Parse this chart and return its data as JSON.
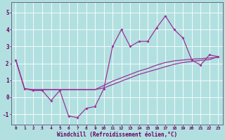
{
  "background_color": "#b2e0e0",
  "line_color": "#993399",
  "grid_color": "#ffffff",
  "xlabel": "Windchill (Refroidissement éolien,°C)",
  "xlabel_color": "#660066",
  "tick_color": "#660066",
  "xlim": [
    -0.5,
    23.5
  ],
  "ylim": [
    -1.6,
    5.6
  ],
  "yticks": [
    -1,
    0,
    1,
    2,
    3,
    4,
    5
  ],
  "xtick_labels": [
    "0",
    "1",
    "2",
    "3",
    "4",
    "5",
    "6",
    "7",
    "8",
    "9",
    "10",
    "11",
    "12",
    "13",
    "14",
    "15",
    "16",
    "17",
    "18",
    "19",
    "20",
    "21",
    "22",
    "23"
  ],
  "xtick_vals": [
    0,
    1,
    2,
    3,
    4,
    5,
    6,
    7,
    8,
    9,
    10,
    11,
    12,
    13,
    14,
    15,
    16,
    17,
    18,
    19,
    20,
    21,
    22,
    23
  ],
  "main_x": [
    0,
    1,
    2,
    3,
    4,
    5,
    6,
    7,
    8,
    9,
    10,
    11,
    12,
    13,
    14,
    15,
    16,
    17,
    18,
    19,
    20,
    21,
    22,
    23
  ],
  "main_y": [
    2.2,
    0.5,
    0.4,
    0.4,
    -0.2,
    0.4,
    -1.1,
    -1.2,
    -0.65,
    -0.55,
    0.5,
    3.0,
    4.0,
    3.0,
    3.3,
    3.3,
    4.1,
    4.8,
    4.0,
    3.5,
    2.2,
    1.9,
    2.5,
    2.4
  ],
  "line2_x": [
    0,
    1,
    2,
    3,
    4,
    5,
    6,
    7,
    8,
    9,
    10,
    11,
    12,
    13,
    14,
    15,
    16,
    17,
    18,
    19,
    20,
    21,
    22,
    23
  ],
  "line2_y": [
    2.2,
    0.5,
    0.45,
    0.45,
    0.45,
    0.45,
    0.45,
    0.45,
    0.45,
    0.45,
    0.7,
    0.95,
    1.15,
    1.35,
    1.55,
    1.7,
    1.9,
    2.05,
    2.15,
    2.2,
    2.25,
    2.28,
    2.32,
    2.36
  ],
  "line3_x": [
    0,
    1,
    2,
    3,
    4,
    5,
    6,
    7,
    8,
    9,
    10,
    11,
    12,
    13,
    14,
    15,
    16,
    17,
    18,
    19,
    20,
    21,
    22,
    23
  ],
  "line3_y": [
    2.2,
    0.5,
    0.45,
    0.45,
    0.45,
    0.45,
    0.45,
    0.45,
    0.45,
    0.45,
    0.55,
    0.75,
    0.95,
    1.15,
    1.35,
    1.5,
    1.65,
    1.8,
    1.95,
    2.05,
    2.12,
    2.18,
    2.22,
    2.4
  ]
}
